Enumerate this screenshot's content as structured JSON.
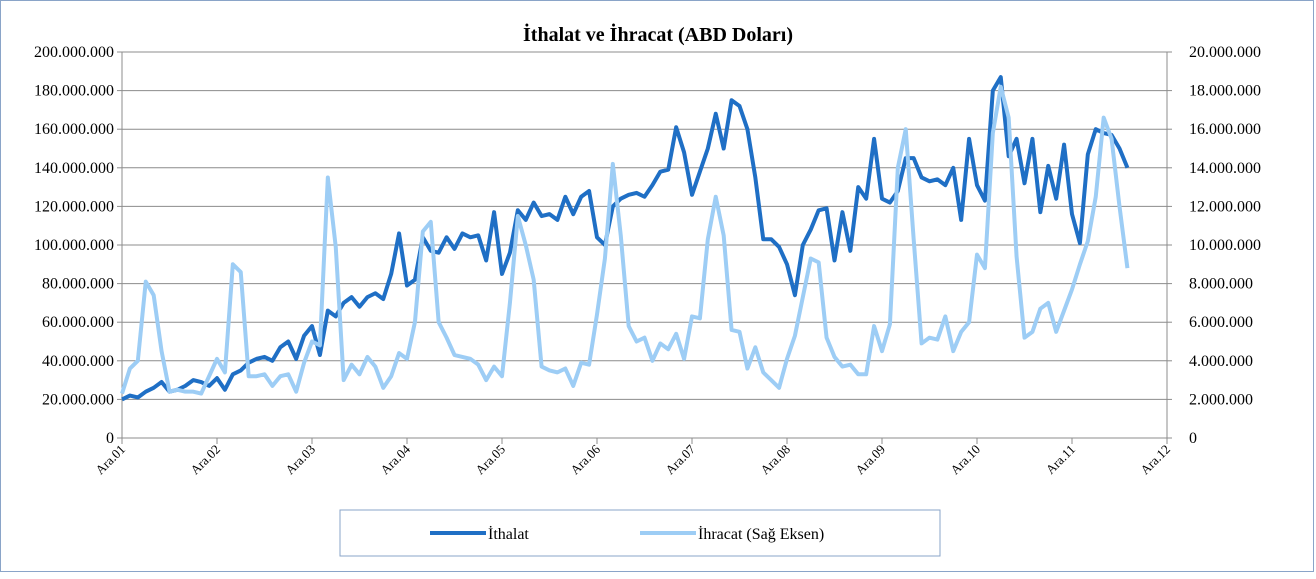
{
  "chart_data": {
    "type": "line",
    "title": "İthalat ve İhracat (ABD Doları)",
    "x": [
      0,
      1,
      2,
      3,
      4,
      5,
      6,
      7,
      8,
      9,
      10,
      11,
      12,
      13,
      14,
      15,
      16,
      17,
      18,
      19,
      20,
      21,
      22,
      23,
      24,
      25,
      26,
      27,
      28,
      29,
      30,
      31,
      32,
      33,
      34,
      35,
      36,
      37,
      38,
      39,
      40,
      41,
      42,
      43,
      44,
      45,
      46,
      47,
      48,
      49,
      50,
      51,
      52,
      53,
      54,
      55,
      56,
      57,
      58,
      59,
      60,
      61,
      62,
      63,
      64,
      65,
      66,
      67,
      68,
      69,
      70,
      71,
      72,
      73,
      74,
      75,
      76,
      77,
      78,
      79,
      80,
      81,
      82,
      83,
      84,
      85,
      86,
      87,
      88,
      89,
      90,
      91,
      92,
      93,
      94,
      95,
      96,
      97,
      98,
      99,
      100,
      101,
      102,
      103,
      104,
      105,
      106,
      107,
      108,
      109,
      110,
      111,
      112,
      113,
      114,
      115,
      116,
      117,
      118,
      119,
      120,
      121,
      122,
      123,
      124,
      125,
      126,
      127
    ],
    "xlim": [
      0,
      132
    ],
    "xticks": [
      {
        "value": 0,
        "label": "Ara.01"
      },
      {
        "value": 12,
        "label": "Ara.02"
      },
      {
        "value": 24,
        "label": "Ara.03"
      },
      {
        "value": 36,
        "label": "Ara.04"
      },
      {
        "value": 48,
        "label": "Ara.05"
      },
      {
        "value": 60,
        "label": "Ara.06"
      },
      {
        "value": 72,
        "label": "Ara.07"
      },
      {
        "value": 84,
        "label": "Ara.08"
      },
      {
        "value": 96,
        "label": "Ara.09"
      },
      {
        "value": 108,
        "label": "Ara.10"
      },
      {
        "value": 120,
        "label": "Ara.11"
      },
      {
        "value": 132,
        "label": "Ara.12"
      }
    ],
    "ylim": [
      0,
      200000000
    ],
    "yticks": [
      0,
      {
        "value": 20000000,
        "label": "20.000.000"
      },
      {
        "value": 40000000,
        "label": "40.000.000"
      },
      {
        "value": 60000000,
        "label": "60.000.000"
      },
      {
        "value": 80000000,
        "label": "80.000.000"
      },
      {
        "value": 100000000,
        "label": "100.000.000"
      },
      {
        "value": 120000000,
        "label": "120.000.000"
      },
      {
        "value": 140000000,
        "label": "140.000.000"
      },
      {
        "value": 160000000,
        "label": "160.000.000"
      },
      {
        "value": 180000000,
        "label": "180.000.000"
      },
      {
        "value": 200000000,
        "label": "200.000.000"
      }
    ],
    "y2lim": [
      0,
      20000000
    ],
    "y2ticks": [
      0,
      {
        "value": 2000000,
        "label": "2.000.000"
      },
      {
        "value": 4000000,
        "label": "4.000.000"
      },
      {
        "value": 6000000,
        "label": "6.000.000"
      },
      {
        "value": 8000000,
        "label": "8.000.000"
      },
      {
        "value": 10000000,
        "label": "10.000.000"
      },
      {
        "value": 12000000,
        "label": "12.000.000"
      },
      {
        "value": 14000000,
        "label": "14.000.000"
      },
      {
        "value": 16000000,
        "label": "16.000.000"
      },
      {
        "value": 18000000,
        "label": "18.000.000"
      },
      {
        "value": 20000000,
        "label": "20.000.000"
      }
    ],
    "grid": true,
    "legend": "bottom",
    "series": [
      {
        "name": "İthalat",
        "color": "#1f6fc5",
        "values": [
          20000000,
          22000000,
          21000000,
          24000000,
          26000000,
          29000000,
          24000000,
          25000000,
          27000000,
          30000000,
          29000000,
          27000000,
          31000000,
          25000000,
          33000000,
          35000000,
          39000000,
          41000000,
          42000000,
          40000000,
          47000000,
          50000000,
          41000000,
          53000000,
          58000000,
          43000000,
          66000000,
          63000000,
          70000000,
          73000000,
          68000000,
          73000000,
          75000000,
          72000000,
          85000000,
          106000000,
          79000000,
          82000000,
          104000000,
          97000000,
          96000000,
          104000000,
          98000000,
          106000000,
          104000000,
          105000000,
          92000000,
          117000000,
          85000000,
          96000000,
          118000000,
          113000000,
          122000000,
          115000000,
          116000000,
          113000000,
          125000000,
          116000000,
          125000000,
          128000000,
          104000000,
          100000000,
          120000000,
          124000000,
          126000000,
          127000000,
          125000000,
          131000000,
          138000000,
          139000000,
          161000000,
          148000000,
          126000000,
          138000000,
          150000000,
          168000000,
          150000000,
          175000000,
          172000000,
          160000000,
          135000000,
          103000000,
          103000000,
          99000000,
          90000000,
          74000000,
          100000000,
          108000000,
          118000000,
          119000000,
          92000000,
          117000000,
          97000000,
          130000000,
          124000000,
          155000000,
          124000000,
          122000000,
          128000000,
          145000000,
          145000000,
          135000000,
          133000000,
          134000000,
          131000000,
          140000000,
          113000000,
          155000000,
          131000000,
          123000000,
          180000000,
          187000000,
          146000000,
          155000000,
          132000000,
          155000000,
          117000000,
          141000000,
          124000000,
          152000000,
          116000000,
          101000000,
          147000000,
          160000000,
          158000000,
          157000000,
          150000000,
          140000000
        ]
      },
      {
        "name": "İhracat (Sağ Eksen)",
        "color": "#9dcdf5",
        "axis": "y2",
        "values": [
          2300000,
          3600000,
          4000000,
          8100000,
          7400000,
          4500000,
          2400000,
          2500000,
          2400000,
          2400000,
          2300000,
          3200000,
          4100000,
          3400000,
          9000000,
          8600000,
          3200000,
          3200000,
          3300000,
          2700000,
          3200000,
          3300000,
          2400000,
          3900000,
          5000000,
          4800000,
          13500000,
          9900000,
          3000000,
          3800000,
          3300000,
          4200000,
          3700000,
          2600000,
          3200000,
          4400000,
          4100000,
          6000000,
          10700000,
          11200000,
          6000000,
          5200000,
          4300000,
          4200000,
          4100000,
          3800000,
          3000000,
          3700000,
          3200000,
          7000000,
          11500000,
          10000000,
          8200000,
          3700000,
          3500000,
          3400000,
          3600000,
          2700000,
          3900000,
          3800000,
          6400000,
          9300000,
          14200000,
          10500000,
          5800000,
          5000000,
          5200000,
          4000000,
          4900000,
          4600000,
          5400000,
          4100000,
          6300000,
          6200000,
          10300000,
          12500000,
          10500000,
          5600000,
          5500000,
          3600000,
          4700000,
          3400000,
          3000000,
          2600000,
          4100000,
          5300000,
          7300000,
          9300000,
          9100000,
          5200000,
          4200000,
          3700000,
          3800000,
          3300000,
          3300000,
          5800000,
          4500000,
          5900000,
          14000000,
          16000000,
          10300000,
          4900000,
          5200000,
          5100000,
          6300000,
          4500000,
          5500000,
          6000000,
          9500000,
          8800000,
          15800000,
          18200000,
          16600000,
          9400000,
          5200000,
          5500000,
          6700000,
          7000000,
          5500000,
          6600000,
          7700000,
          9000000,
          10200000,
          12500000,
          16600000,
          15500000,
          12000000,
          8800000
        ]
      }
    ]
  }
}
